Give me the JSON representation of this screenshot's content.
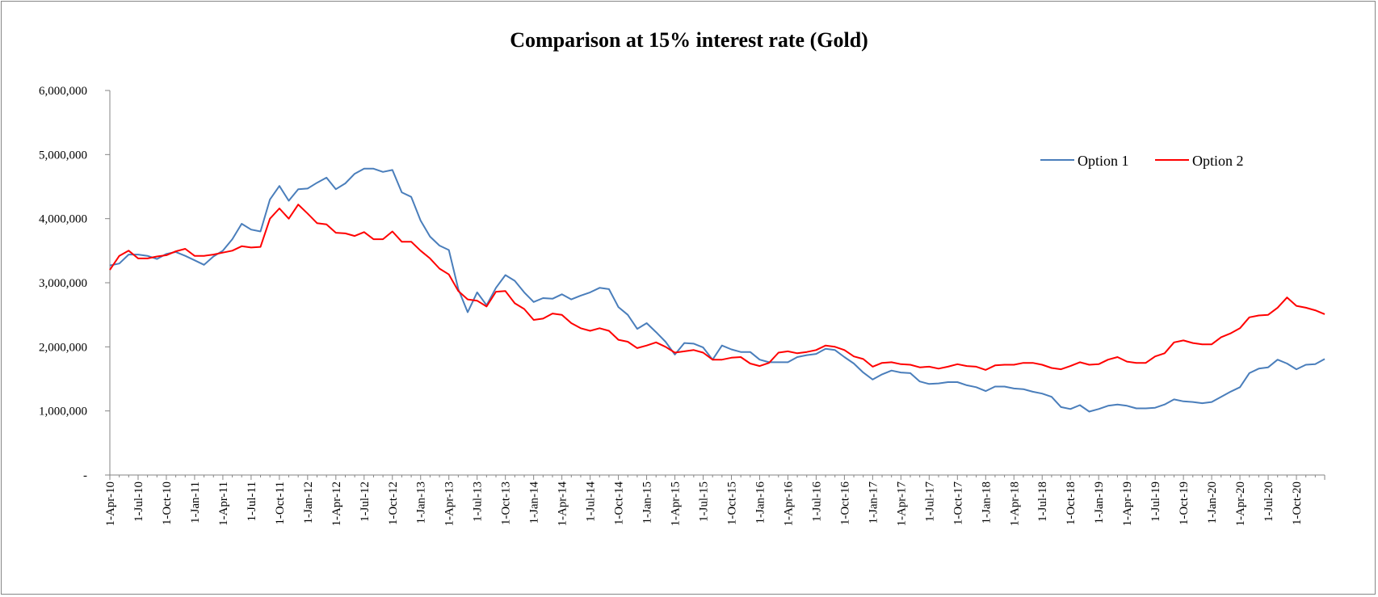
{
  "chart_data": {
    "type": "line",
    "title": "Comparison at 15% interest rate  (Gold)",
    "xlabel": "",
    "ylabel": "",
    "ylim": [
      0,
      6000000
    ],
    "yticks": [
      0,
      1000000,
      2000000,
      3000000,
      4000000,
      5000000,
      6000000
    ],
    "ytick_labels": [
      "-",
      "1,000,000",
      "2,000,000",
      "3,000,000",
      "4,000,000",
      "5,000,000",
      "6,000,000"
    ],
    "x_start": "1-Apr-10",
    "x_labels": [
      "1-Apr-10",
      "1-Jul-10",
      "1-Oct-10",
      "1-Jan-11",
      "1-Apr-11",
      "1-Jul-11",
      "1-Oct-11",
      "1-Jan-12",
      "1-Apr-12",
      "1-Jul-12",
      "1-Oct-12",
      "1-Jan-13",
      "1-Apr-13",
      "1-Jul-13",
      "1-Oct-13",
      "1-Jan-14",
      "1-Apr-14",
      "1-Jul-14",
      "1-Oct-14",
      "1-Jan-15",
      "1-Apr-15",
      "1-Jul-15",
      "1-Oct-15",
      "1-Jan-16",
      "1-Apr-16",
      "1-Jul-16",
      "1-Oct-16",
      "1-Jan-17",
      "1-Apr-17",
      "1-Jul-17",
      "1-Oct-17",
      "1-Jan-18",
      "1-Apr-18",
      "1-Jul-18",
      "1-Oct-18",
      "1-Jan-19",
      "1-Apr-19",
      "1-Jul-19",
      "1-Oct-19",
      "1-Jan-20",
      "1-Apr-20",
      "1-Jul-20",
      "1-Oct-20"
    ],
    "grid": false,
    "legend_position": "top-right",
    "series": [
      {
        "name": "Option 1",
        "color": "#4a7ebb",
        "values": [
          3270000,
          3300000,
          3440000,
          3440000,
          3420000,
          3370000,
          3450000,
          3480000,
          3420000,
          3350000,
          3280000,
          3410000,
          3500000,
          3680000,
          3920000,
          3830000,
          3800000,
          4300000,
          4510000,
          4280000,
          4460000,
          4470000,
          4560000,
          4640000,
          4460000,
          4550000,
          4700000,
          4780000,
          4780000,
          4730000,
          4760000,
          4410000,
          4340000,
          3970000,
          3720000,
          3580000,
          3510000,
          2900000,
          2540000,
          2850000,
          2650000,
          2920000,
          3120000,
          3030000,
          2850000,
          2700000,
          2760000,
          2750000,
          2820000,
          2740000,
          2800000,
          2850000,
          2920000,
          2900000,
          2620000,
          2500000,
          2280000,
          2370000,
          2230000,
          2080000,
          1880000,
          2060000,
          2050000,
          1990000,
          1800000,
          2020000,
          1960000,
          1920000,
          1920000,
          1800000,
          1760000,
          1760000,
          1760000,
          1840000,
          1870000,
          1890000,
          1970000,
          1950000,
          1840000,
          1740000,
          1600000,
          1490000,
          1570000,
          1630000,
          1600000,
          1590000,
          1460000,
          1420000,
          1430000,
          1450000,
          1450000,
          1400000,
          1370000,
          1310000,
          1380000,
          1380000,
          1350000,
          1340000,
          1300000,
          1270000,
          1220000,
          1060000,
          1030000,
          1090000,
          990000,
          1030000,
          1080000,
          1100000,
          1080000,
          1040000,
          1040000,
          1050000,
          1100000,
          1180000,
          1150000,
          1140000,
          1120000,
          1140000,
          1220000,
          1300000,
          1370000,
          1590000,
          1660000,
          1680000,
          1800000,
          1740000,
          1650000,
          1720000,
          1730000,
          1810000
        ]
      },
      {
        "name": "Option 2",
        "color": "#ff0000",
        "values": [
          3200000,
          3420000,
          3500000,
          3380000,
          3380000,
          3410000,
          3430000,
          3490000,
          3530000,
          3420000,
          3420000,
          3440000,
          3470000,
          3500000,
          3570000,
          3550000,
          3560000,
          4000000,
          4160000,
          4000000,
          4220000,
          4080000,
          3930000,
          3910000,
          3780000,
          3770000,
          3730000,
          3790000,
          3680000,
          3680000,
          3800000,
          3640000,
          3640000,
          3500000,
          3380000,
          3220000,
          3130000,
          2870000,
          2740000,
          2720000,
          2630000,
          2860000,
          2870000,
          2680000,
          2590000,
          2420000,
          2440000,
          2520000,
          2500000,
          2370000,
          2290000,
          2250000,
          2290000,
          2250000,
          2110000,
          2080000,
          1980000,
          2020000,
          2070000,
          2000000,
          1910000,
          1930000,
          1950000,
          1910000,
          1800000,
          1800000,
          1830000,
          1840000,
          1740000,
          1700000,
          1750000,
          1910000,
          1930000,
          1900000,
          1920000,
          1950000,
          2020000,
          2000000,
          1950000,
          1850000,
          1810000,
          1690000,
          1750000,
          1760000,
          1730000,
          1720000,
          1680000,
          1690000,
          1660000,
          1690000,
          1730000,
          1700000,
          1690000,
          1640000,
          1710000,
          1720000,
          1720000,
          1750000,
          1750000,
          1720000,
          1670000,
          1650000,
          1700000,
          1760000,
          1720000,
          1730000,
          1800000,
          1840000,
          1770000,
          1750000,
          1750000,
          1850000,
          1900000,
          2070000,
          2100000,
          2060000,
          2040000,
          2040000,
          2150000,
          2210000,
          2290000,
          2460000,
          2490000,
          2500000,
          2610000,
          2770000,
          2640000,
          2610000,
          2570000,
          2510000
        ]
      }
    ]
  }
}
